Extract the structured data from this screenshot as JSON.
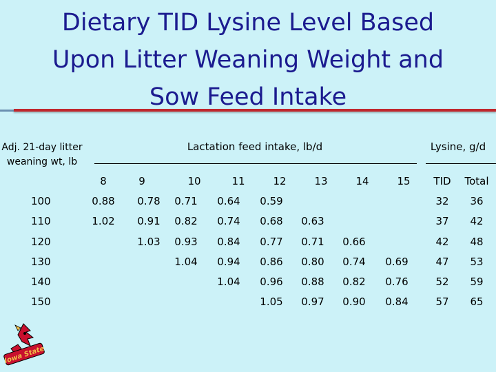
{
  "title": {
    "lines": [
      "Dietary TID Lysine Level Based",
      "Upon Litter Weaning Weight and",
      "Sow Feed Intake"
    ]
  },
  "table": {
    "row_header_label": "Adj. 21-day litter weaning wt, lb",
    "feed_intake_header": "Lactation feed intake, lb/d",
    "lysine_header": "Lysine, g/d",
    "feed_columns": [
      "8",
      "9",
      "10",
      "11",
      "12",
      "13",
      "14",
      "15"
    ],
    "lysine_columns": [
      "TID",
      "Total"
    ],
    "rows": [
      {
        "weight": "100",
        "values": [
          "0.88",
          "0.78",
          "0.71",
          "0.64",
          "0.59",
          "",
          "",
          ""
        ],
        "tid": "32",
        "total": "36"
      },
      {
        "weight": "110",
        "values": [
          "1.02",
          "0.91",
          "0.82",
          "0.74",
          "0.68",
          "0.63",
          "",
          ""
        ],
        "tid": "37",
        "total": "42"
      },
      {
        "weight": "120",
        "values": [
          "",
          "1.03",
          "0.93",
          "0.84",
          "0.77",
          "0.71",
          "0.66",
          ""
        ],
        "tid": "42",
        "total": "48"
      },
      {
        "weight": "130",
        "values": [
          "",
          "",
          "1.04",
          "0.94",
          "0.86",
          "0.80",
          "0.74",
          "0.69"
        ],
        "tid": "47",
        "total": "53"
      },
      {
        "weight": "140",
        "values": [
          "",
          "",
          "",
          "1.04",
          "0.96",
          "0.88",
          "0.82",
          "0.76"
        ],
        "tid": "52",
        "total": "59"
      },
      {
        "weight": "150",
        "values": [
          "",
          "",
          "",
          "",
          "1.05",
          "0.97",
          "0.90",
          "0.84"
        ],
        "tid": "57",
        "total": "65"
      }
    ]
  },
  "logo": {
    "text": "Iowa State",
    "icon": "cardinal-mascot-icon",
    "colors": {
      "red": "#c8102e",
      "gold": "#f1be48"
    }
  },
  "colors": {
    "background": "#ccf2f8",
    "title": "#1b1b8f",
    "rule": "#c0272d"
  }
}
